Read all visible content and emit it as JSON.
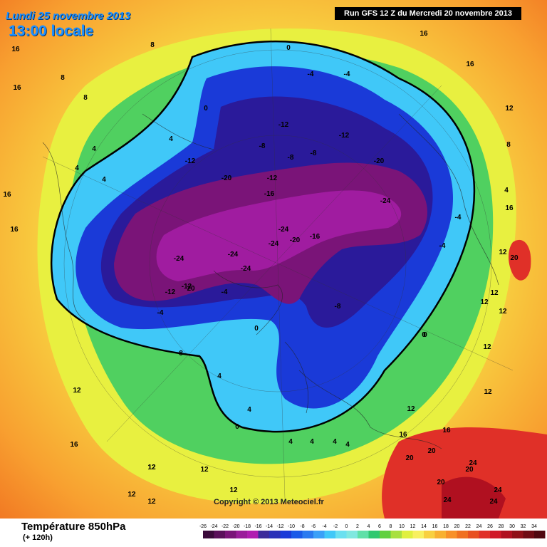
{
  "header": {
    "valid_date": "Lundi 25 novembre 2013",
    "local_time": "13:00 locale",
    "run_info": "Run GFS 12 Z du Mercredi 20 novembre 2013"
  },
  "footer": {
    "variable": "Température 850hPa",
    "lead_time": "(+ 120h)",
    "copyright": "Copyright © 2013 Meteociel.fr"
  },
  "legend": {
    "ticks": [
      "-26",
      "-24",
      "-22",
      "-20",
      "-18",
      "-16",
      "-14",
      "-12",
      "-10",
      "-8",
      "-6",
      "-4",
      "-2",
      "0",
      "2",
      "4",
      "6",
      "8",
      "10",
      "12",
      "14",
      "16",
      "18",
      "20",
      "22",
      "24",
      "26",
      "28",
      "30",
      "32",
      "34"
    ],
    "colors": [
      "#3a0a3a",
      "#5a105a",
      "#7a1478",
      "#9a1c9a",
      "#b01cb0",
      "#3c2a9a",
      "#2a30b8",
      "#1a3ad8",
      "#1a5ae8",
      "#2a7af0",
      "#3aa0f8",
      "#40c8f8",
      "#6ae0f0",
      "#80e8e0",
      "#60e0a8",
      "#30c870",
      "#60d040",
      "#a8e040",
      "#e0f040",
      "#f8f060",
      "#f8d040",
      "#f8b030",
      "#f89028",
      "#f07020",
      "#e85020",
      "#e03028",
      "#d01828",
      "#b01020",
      "#901018",
      "#700c14",
      "#500810"
    ]
  },
  "map_labels": [
    {
      "text": "16"
    },
    {
      "text": "8"
    },
    {
      "text": "16"
    },
    {
      "text": "8"
    },
    {
      "text": "8"
    },
    {
      "text": "4"
    },
    {
      "text": "4"
    },
    {
      "text": "0"
    },
    {
      "text": "-4"
    },
    {
      "text": "-4"
    },
    {
      "text": "0"
    },
    {
      "text": "-12"
    },
    {
      "text": "-8"
    },
    {
      "text": "-12"
    },
    {
      "text": "-8"
    },
    {
      "text": "-8"
    },
    {
      "text": "-12"
    },
    {
      "text": "-20"
    },
    {
      "text": "-12"
    },
    {
      "text": "-16"
    },
    {
      "text": "-20"
    },
    {
      "text": "-24"
    },
    {
      "text": "-24"
    },
    {
      "text": "-16"
    },
    {
      "text": "-24"
    },
    {
      "text": "-20"
    },
    {
      "text": "-24"
    },
    {
      "text": "-24"
    },
    {
      "text": "-24"
    },
    {
      "text": "-12"
    },
    {
      "text": "-12"
    },
    {
      "text": "-4"
    },
    {
      "text": "20"
    },
    {
      "text": "-4"
    },
    {
      "text": "0"
    },
    {
      "text": "-8"
    },
    {
      "text": "0"
    },
    {
      "text": "8"
    },
    {
      "text": "4"
    },
    {
      "text": "4"
    },
    {
      "text": "4"
    },
    {
      "text": "0"
    },
    {
      "text": "4"
    },
    {
      "text": "4"
    },
    {
      "text": "4"
    },
    {
      "text": "12"
    },
    {
      "text": "12"
    },
    {
      "text": "16"
    },
    {
      "text": "12"
    },
    {
      "text": "12"
    },
    {
      "text": "12"
    },
    {
      "text": "16"
    },
    {
      "text": "16"
    },
    {
      "text": "16"
    },
    {
      "text": "16"
    },
    {
      "text": "12"
    },
    {
      "text": "8"
    },
    {
      "text": "4"
    },
    {
      "text": "16"
    },
    {
      "text": "-4"
    },
    {
      "text": "-4"
    },
    {
      "text": "12"
    },
    {
      "text": "20"
    },
    {
      "text": "12"
    },
    {
      "text": "12"
    },
    {
      "text": "0"
    },
    {
      "text": "16"
    },
    {
      "text": "12"
    },
    {
      "text": "20"
    },
    {
      "text": "20"
    },
    {
      "text": "24"
    },
    {
      "text": "24"
    },
    {
      "text": "20"
    },
    {
      "text": "24"
    },
    {
      "text": "24"
    },
    {
      "text": "20"
    },
    {
      "text": "12"
    },
    {
      "text": "12"
    },
    {
      "text": "12"
    },
    {
      "text": "12"
    },
    {
      "text": "16"
    },
    {
      "text": "12"
    },
    {
      "text": "4"
    },
    {
      "text": "4"
    }
  ]
}
